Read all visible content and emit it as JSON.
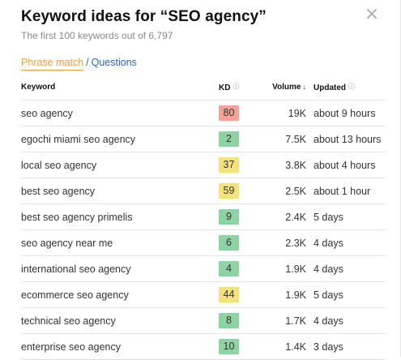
{
  "header": {
    "title": "Keyword ideas for “SEO agency”",
    "subtitle": "The first 100 keywords out of 6,797",
    "close_icon": "close-icon"
  },
  "tabs": {
    "active": "Phrase match",
    "separator": "/",
    "other": "Questions"
  },
  "table": {
    "columns": {
      "keyword": "Keyword",
      "kd": "KD",
      "volume": "Volume",
      "updated": "Updated"
    },
    "sort_icon": "arrow-down-icon",
    "info_icon": "info-icon",
    "colors": {
      "easy": "#8ed3a3",
      "medium": "#f4e27a",
      "hard": "#f5a399"
    },
    "rows": [
      {
        "keyword": "seo agency",
        "kd": "80",
        "level": "hard",
        "volume": "19K",
        "updated": "about 9 hours"
      },
      {
        "keyword": "egochi miami seo agency",
        "kd": "2",
        "level": "easy",
        "volume": "7.5K",
        "updated": "about 13 hours"
      },
      {
        "keyword": "local seo agency",
        "kd": "37",
        "level": "medium",
        "volume": "3.8K",
        "updated": "about 4 hours"
      },
      {
        "keyword": "best seo agency",
        "kd": "59",
        "level": "medium",
        "volume": "2.5K",
        "updated": "about 1 hour"
      },
      {
        "keyword": "best seo agency primelis",
        "kd": "9",
        "level": "easy",
        "volume": "2.4K",
        "updated": "5 days"
      },
      {
        "keyword": "seo agency near me",
        "kd": "6",
        "level": "easy",
        "volume": "2.3K",
        "updated": "4 days"
      },
      {
        "keyword": "international seo agency",
        "kd": "4",
        "level": "easy",
        "volume": "1.9K",
        "updated": "4 days"
      },
      {
        "keyword": "ecommerce seo agency",
        "kd": "44",
        "level": "medium",
        "volume": "1.9K",
        "updated": "5 days"
      },
      {
        "keyword": "technical seo agency",
        "kd": "8",
        "level": "easy",
        "volume": "1.7K",
        "updated": "4 days"
      },
      {
        "keyword": "enterprise seo agency",
        "kd": "10",
        "level": "easy",
        "volume": "1.4K",
        "updated": "3 days"
      }
    ]
  }
}
